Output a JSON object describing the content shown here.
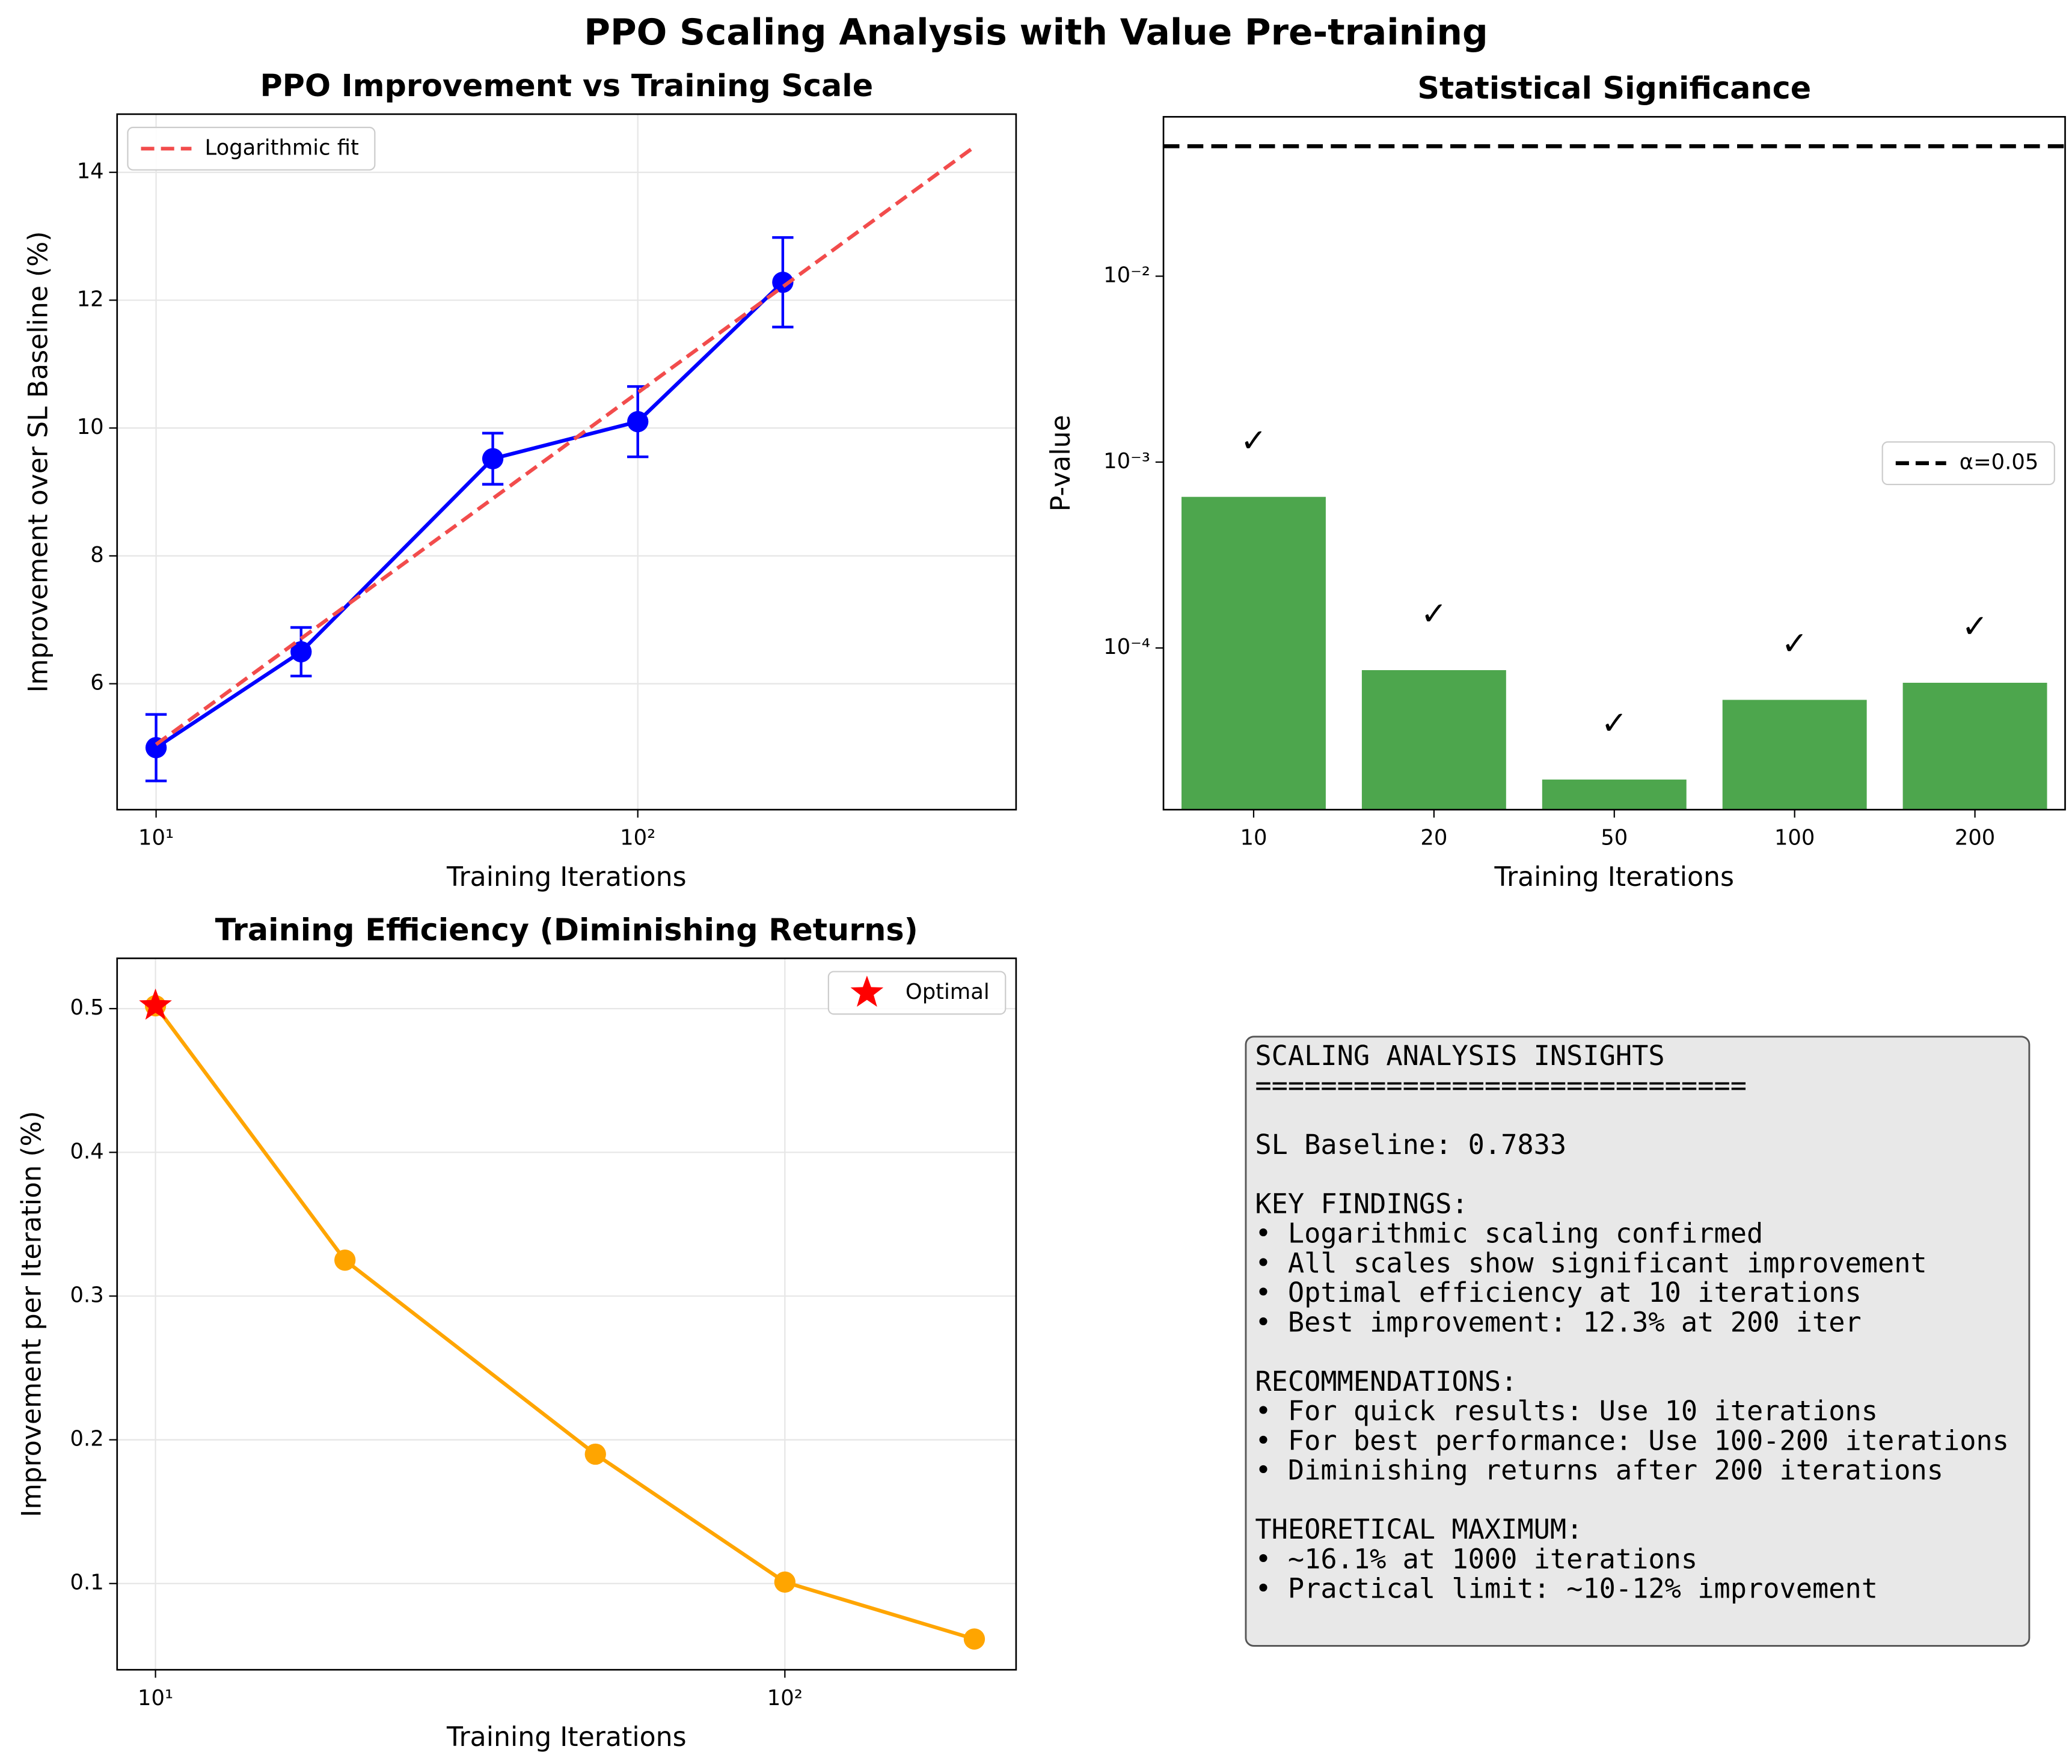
{
  "title": "PPO Scaling Analysis with Value Pre-training",
  "chart_data": [
    {
      "type": "line",
      "title": "PPO Improvement vs Training Scale",
      "xlabel": "Training Iterations",
      "ylabel": "Improvement over SL Baseline (%)",
      "xscale": "log",
      "x": [
        10,
        20,
        50,
        100,
        200
      ],
      "series": [
        {
          "color": "#0000ff",
          "values": [
            5.0,
            6.5,
            9.52,
            10.1,
            12.28
          ],
          "errors": [
            0.52,
            0.38,
            0.4,
            0.55,
            0.7
          ]
        },
        {
          "name": "Logarithmic fit",
          "color": "#f24c4c",
          "style": "dashed",
          "x": [
            10,
            500
          ],
          "values": [
            5.05,
            14.4
          ]
        }
      ],
      "xlim": [
        8.3,
        610
      ],
      "xticks": [
        {
          "value": 10,
          "label": "10¹"
        },
        {
          "value": 100,
          "label": "10²"
        }
      ],
      "ylim": [
        4.03,
        14.91
      ],
      "yticks": [
        6,
        8,
        10,
        12,
        14
      ],
      "grid": true,
      "legend": "upper left"
    },
    {
      "type": "bar",
      "title": "Statistical Significance",
      "xlabel": "Training Iterations",
      "ylabel": "P-value",
      "yscale": "log",
      "categories": [
        "10",
        "20",
        "50",
        "100",
        "200"
      ],
      "values": [
        0.00065,
        7.6e-05,
        1.96e-05,
        5.26e-05,
        6.5e-05
      ],
      "color": "#4da64d",
      "annotations": [
        "✓",
        "✓",
        "✓",
        "✓",
        "✓"
      ],
      "reference_line": {
        "name": "α=0.05",
        "value": 0.05,
        "color": "#000000"
      },
      "ylim": [
        1.35e-05,
        0.072
      ],
      "yticks": [
        {
          "value": 0.0001,
          "label": "10⁻⁴"
        },
        {
          "value": 0.001,
          "label": "10⁻³"
        },
        {
          "value": 0.01,
          "label": "10⁻²"
        }
      ],
      "grid": false,
      "legend": "center right"
    },
    {
      "type": "line",
      "title": "Training Efficiency (Diminishing Returns)",
      "xlabel": "Training Iterations",
      "ylabel": "Improvement per Iteration (%)",
      "xscale": "log",
      "x": [
        10,
        20,
        50,
        100,
        200
      ],
      "series": [
        {
          "color": "#ffa500",
          "values": [
            0.502,
            0.325,
            0.19,
            0.101,
            0.0614
          ]
        }
      ],
      "highlight": {
        "name": "Optimal",
        "x": 10,
        "value": 0.502,
        "color": "#ff0000"
      },
      "xlim": [
        8.69,
        233
      ],
      "xticks": [
        {
          "value": 10,
          "label": "10¹"
        },
        {
          "value": 100,
          "label": "10²"
        }
      ],
      "ylim": [
        0.04,
        0.535
      ],
      "yticks": [
        0.1,
        0.2,
        0.3,
        0.4,
        0.5
      ],
      "grid": true,
      "legend": "upper right"
    }
  ],
  "insights": [
    [
      "SCALING ANALYSIS INSIGHTS",
      "=============================="
    ],
    [
      "SL Baseline: 0.7833"
    ],
    [
      "KEY FINDINGS:",
      "• Logarithmic scaling confirmed",
      "• All scales show significant improvement",
      "• Optimal efficiency at 10 iterations",
      "• Best improvement: 12.3% at 200 iter"
    ],
    [
      "RECOMMENDATIONS:",
      "• For quick results: Use 10 iterations",
      "• For best performance: Use 100-200 iterations",
      "• Diminishing returns after 200 iterations"
    ],
    [
      "THEORETICAL MAXIMUM:",
      "• ~16.1% at 1000 iterations",
      "• Practical limit: ~10-12% improvement"
    ]
  ]
}
